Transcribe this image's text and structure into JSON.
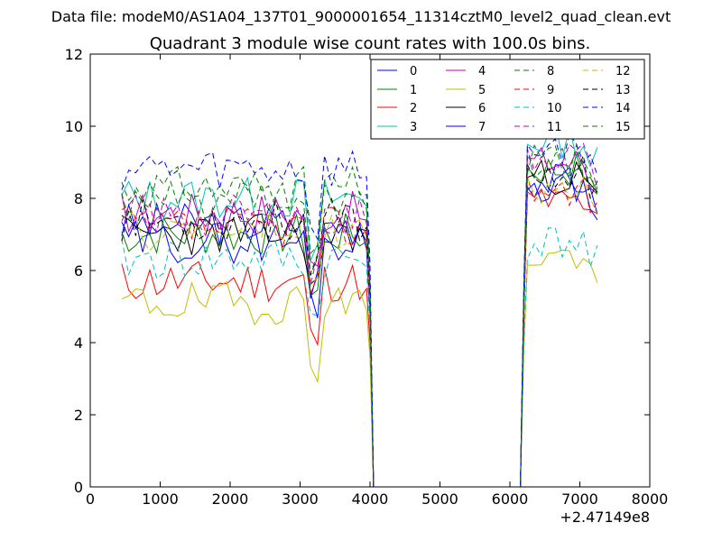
{
  "chart_data": {
    "type": "line",
    "figure_title": "Data file: modeM0/AS1A04_137T01_9000001654_11314cztM0_level2_quad_clean.evt",
    "title": "Quadrant 3 module wise count rates with 100.0s bins.",
    "xlabel": "",
    "ylabel": "",
    "x_offset_label": "+2.47149e8",
    "xlim": [
      0,
      8000
    ],
    "ylim": [
      0,
      12
    ],
    "x_ticks": [
      0,
      1000,
      2000,
      3000,
      4000,
      5000,
      6000,
      7000,
      8000
    ],
    "y_ticks": [
      0,
      2,
      4,
      6,
      8,
      10,
      12
    ],
    "x_tick_labels": [
      "0",
      "1000",
      "2000",
      "3000",
      "4000",
      "5000",
      "6000",
      "7000",
      "8000"
    ],
    "y_tick_labels": [
      "0",
      "2",
      "4",
      "6",
      "8",
      "10",
      "12"
    ],
    "grid": false,
    "legend_position": "upper-right",
    "legend_columns": 4,
    "series": [
      {
        "name": "0",
        "color": "#0000ff",
        "dash": "solid",
        "base": 7.3,
        "seed": 3,
        "after": 8.5
      },
      {
        "name": "1",
        "color": "#008000",
        "dash": "solid",
        "base": 7.0,
        "seed": 7,
        "after": 8.8
      },
      {
        "name": "2",
        "color": "#ff0000",
        "dash": "solid",
        "base": 5.7,
        "seed": 11,
        "after": 7.9
      },
      {
        "name": "3",
        "color": "#00bfbf",
        "dash": "solid",
        "base": 8.0,
        "seed": 13,
        "after": 9.6
      },
      {
        "name": "4",
        "color": "#bf00bf",
        "dash": "solid",
        "base": 7.6,
        "seed": 17,
        "after": 9.0
      },
      {
        "name": "5",
        "color": "#bfbf00",
        "dash": "solid",
        "base": 5.1,
        "seed": 19,
        "after": 6.4
      },
      {
        "name": "6",
        "color": "#000000",
        "dash": "solid",
        "base": 7.0,
        "seed": 23,
        "after": 8.6
      },
      {
        "name": "7",
        "color": "#0000ff",
        "dash": "solid",
        "base": 6.8,
        "seed": 29,
        "after": 8.4
      },
      {
        "name": "8",
        "color": "#008000",
        "dash": "dashed",
        "base": 8.3,
        "seed": 31,
        "after": 8.9
      },
      {
        "name": "9",
        "color": "#ff0000",
        "dash": "dashed",
        "base": 7.2,
        "seed": 37,
        "after": 8.3
      },
      {
        "name": "10",
        "color": "#00bfbf",
        "dash": "dashed",
        "base": 6.3,
        "seed": 41,
        "after": 6.8
      },
      {
        "name": "11",
        "color": "#bf00bf",
        "dash": "dashed",
        "base": 7.5,
        "seed": 43,
        "after": 9.2
      },
      {
        "name": "12",
        "color": "#bfbf00",
        "dash": "dashed",
        "base": 7.1,
        "seed": 47,
        "after": 8.2
      },
      {
        "name": "13",
        "color": "#000000",
        "dash": "dashed",
        "base": 7.4,
        "seed": 53,
        "after": 8.7
      },
      {
        "name": "14",
        "color": "#0000ff",
        "dash": "dashed",
        "base": 8.8,
        "seed": 59,
        "after": 9.4
      },
      {
        "name": "15",
        "color": "#008000",
        "dash": "dashed",
        "base": 7.9,
        "seed": 61,
        "after": 9.0
      }
    ]
  }
}
